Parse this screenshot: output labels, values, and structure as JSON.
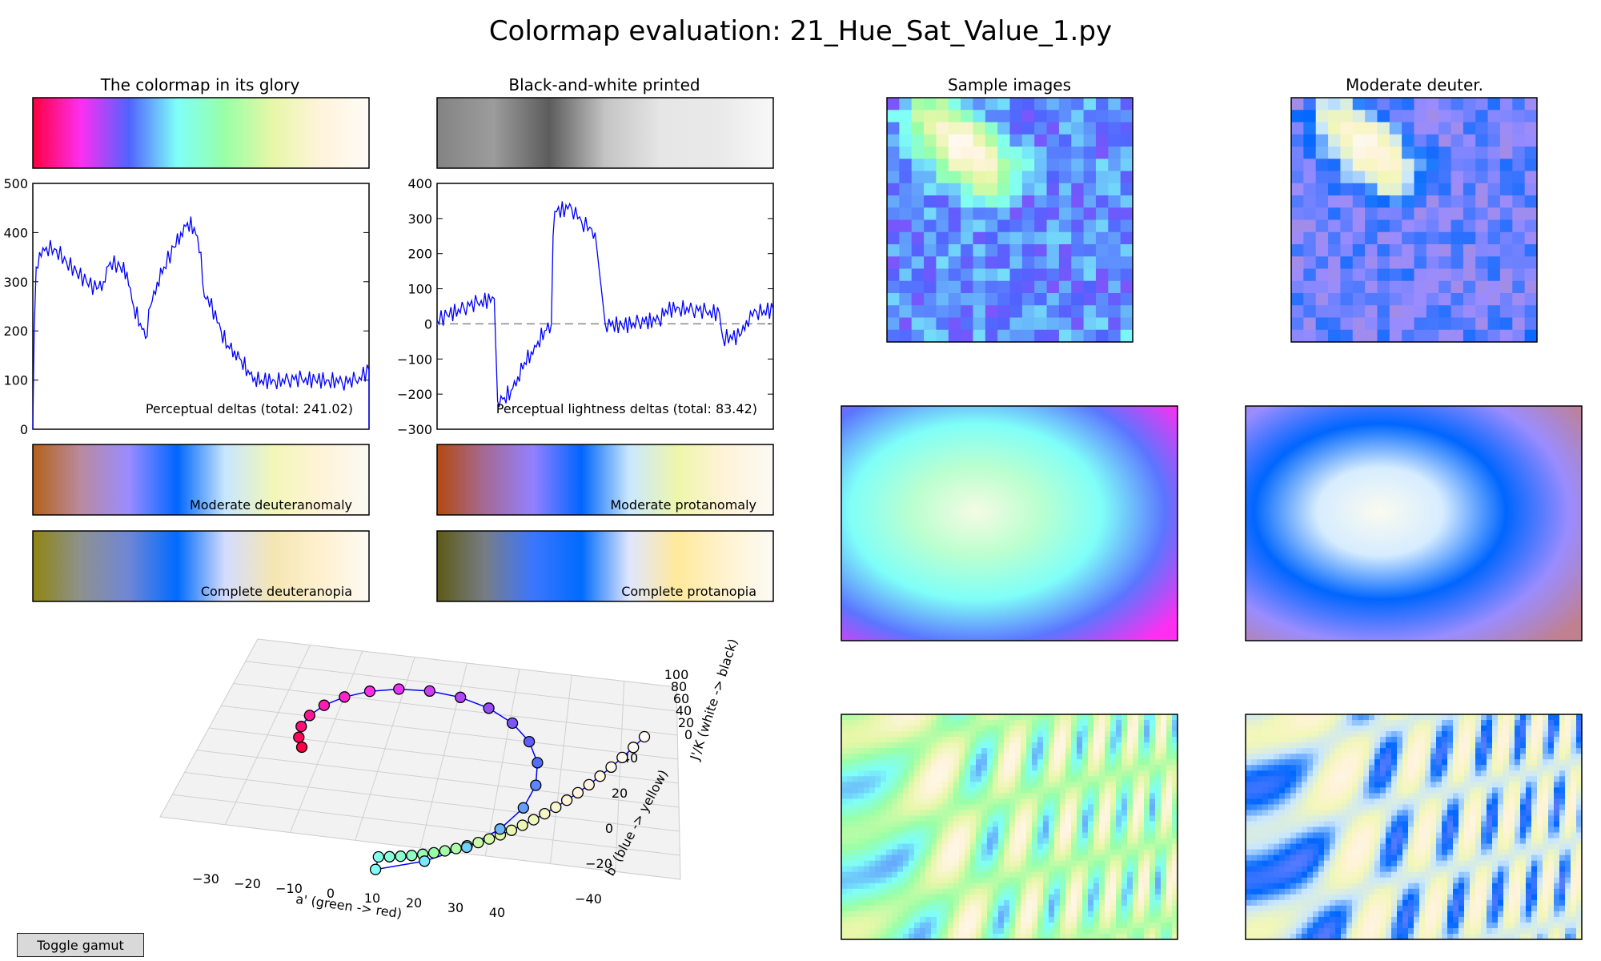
{
  "window": {
    "title": "Colormap evaluation: 21_Hue_Sat_Value_1.py"
  },
  "colors": {
    "colormap": [
      "#ff0040",
      "#ff2ef1",
      "#5063ff",
      "#7ffff8",
      "#98ffa6",
      "#e7f7a8",
      "#fff4dc",
      "#fffbf7"
    ],
    "bw": [
      "#838383",
      "#9c9c9c",
      "#5c5c5c",
      "#c4c4c4",
      "#e6e6e6",
      "#e9e9e9",
      "#f8f8f8"
    ],
    "moderate_deuteranomaly": [
      "#b5611a",
      "#b98aa0",
      "#9a8cff",
      "#0066ff",
      "#c7e6ff",
      "#f2f7b8",
      "#fff3d8",
      "#fbfaf4"
    ],
    "moderate_protanomaly": [
      "#b24a10",
      "#a56a96",
      "#9380ff",
      "#0065ff",
      "#c9e8ff",
      "#eef6ab",
      "#fff3d8",
      "#fbfaf4"
    ],
    "complete_deuteranopia": [
      "#8f8512",
      "#8e9190",
      "#6f86d6",
      "#006bff",
      "#d3dcff",
      "#f4e6b2",
      "#fff1cf",
      "#fbfaf4"
    ],
    "complete_protanopia": [
      "#5e5a15",
      "#767d86",
      "#3c76ff",
      "#006bff",
      "#dfe6ff",
      "#ffe99a",
      "#fff3cf",
      "#fbfaf4"
    ],
    "sample_ring": [
      "#f5fbe3",
      "#bbffcf",
      "#7ffff8",
      "#5b75ff",
      "#ff2ef1"
    ],
    "deuter_ring": [
      "#fafbf0",
      "#d6ecff",
      "#0066ff",
      "#9a8cff",
      "#c08090"
    ],
    "line": "#0000ff"
  },
  "top_left": {
    "title": "The colormap in its glory",
    "plot_annotation": "Perceptual deltas (total: 241.02)",
    "deuteranomaly_label": "Moderate deuteranomaly",
    "deuteranopia_label": "Complete deuteranopia"
  },
  "top_middle": {
    "title": "Black-and-white printed",
    "plot_annotation": "Perceptual lightness deltas (total: 83.42)",
    "protanomaly_label": "Moderate protanomaly",
    "protanopia_label": "Complete protanopia"
  },
  "sample_titles": {
    "sample": "Sample images",
    "deuter": "Moderate deuter."
  },
  "plot3d": {
    "xlabel": "a' (green -> red)",
    "ylabel": "b' (blue -> yellow)",
    "zlabel": "J'/K (white -> black)",
    "xticks": [
      "−30",
      "−20",
      "−10",
      "0",
      "10",
      "20",
      "30",
      "40"
    ],
    "yticks": [
      "−40",
      "−20",
      "0",
      "20",
      "40"
    ],
    "zticks": [
      "0",
      "20",
      "40",
      "60",
      "80",
      "100"
    ]
  },
  "buttons": {
    "toggle_gamut": "Toggle gamut"
  },
  "chart_data": [
    {
      "type": "line",
      "title": "",
      "annotation": "Perceptual deltas (total: 241.02)",
      "ylim": [
        0,
        500
      ],
      "yticks": [
        0,
        100,
        200,
        300,
        400,
        500
      ],
      "xlim": [
        0,
        1
      ],
      "series": [
        {
          "values": [
            [
              0,
              0
            ],
            [
              0.004,
              200
            ],
            [
              0.01,
              330
            ],
            [
              0.02,
              360
            ],
            [
              0.04,
              370
            ],
            [
              0.07,
              365
            ],
            [
              0.1,
              340
            ],
            [
              0.13,
              320
            ],
            [
              0.16,
              300
            ],
            [
              0.19,
              285
            ],
            [
              0.21,
              300
            ],
            [
              0.22,
              330
            ],
            [
              0.23,
              340
            ],
            [
              0.26,
              330
            ],
            [
              0.28,
              320
            ],
            [
              0.3,
              250
            ],
            [
              0.32,
              215
            ],
            [
              0.335,
              185
            ],
            [
              0.35,
              250
            ],
            [
              0.37,
              300
            ],
            [
              0.39,
              330
            ],
            [
              0.42,
              370
            ],
            [
              0.44,
              400
            ],
            [
              0.46,
              420
            ],
            [
              0.48,
              410
            ],
            [
              0.5,
              360
            ],
            [
              0.51,
              270
            ],
            [
              0.52,
              270
            ],
            [
              0.56,
              200
            ],
            [
              0.58,
              170
            ],
            [
              0.6,
              160
            ],
            [
              0.62,
              140
            ],
            [
              0.64,
              120
            ],
            [
              0.66,
              105
            ],
            [
              0.68,
              100
            ],
            [
              0.72,
              98
            ],
            [
              0.76,
              100
            ],
            [
              0.8,
              102
            ],
            [
              0.84,
              100
            ],
            [
              0.88,
              100
            ],
            [
              0.92,
              95
            ],
            [
              0.96,
              100
            ],
            [
              1.0,
              120
            ],
            [
              1.0,
              0
            ]
          ]
        }
      ]
    },
    {
      "type": "line",
      "title": "",
      "annotation": "Perceptual lightness deltas (total: 83.42)",
      "ylim": [
        -300,
        400
      ],
      "yticks": [
        -300,
        -200,
        -100,
        0,
        100,
        200,
        300,
        400
      ],
      "xlim": [
        0,
        1
      ],
      "reference_line": 0,
      "series": [
        {
          "values": [
            [
              0,
              10
            ],
            [
              0.03,
              25
            ],
            [
              0.08,
              45
            ],
            [
              0.12,
              60
            ],
            [
              0.17,
              72
            ],
            [
              0.18,
              -220
            ],
            [
              0.2,
              -210
            ],
            [
              0.22,
              -190
            ],
            [
              0.24,
              -150
            ],
            [
              0.26,
              -110
            ],
            [
              0.28,
              -80
            ],
            [
              0.3,
              -50
            ],
            [
              0.32,
              -20
            ],
            [
              0.34,
              0
            ],
            [
              0.345,
              250
            ],
            [
              0.35,
              320
            ],
            [
              0.4,
              330
            ],
            [
              0.43,
              290
            ],
            [
              0.46,
              270
            ],
            [
              0.47,
              260
            ],
            [
              0.5,
              0
            ],
            [
              0.55,
              -5
            ],
            [
              0.6,
              5
            ],
            [
              0.66,
              10
            ],
            [
              0.68,
              40
            ],
            [
              0.72,
              45
            ],
            [
              0.76,
              40
            ],
            [
              0.8,
              35
            ],
            [
              0.84,
              30
            ],
            [
              0.85,
              -40
            ],
            [
              0.9,
              -35
            ],
            [
              0.92,
              10
            ],
            [
              0.95,
              35
            ],
            [
              1.0,
              40
            ]
          ]
        }
      ]
    },
    {
      "type": "scatter",
      "title": "",
      "xlabel": "a' (green -> red)",
      "ylabel": "b' (blue -> yellow)",
      "zlabel": "J'/K (white -> black)",
      "xlim": [
        -35,
        45
      ],
      "ylim": [
        -45,
        45
      ],
      "zlim": [
        0,
        100
      ]
    }
  ]
}
